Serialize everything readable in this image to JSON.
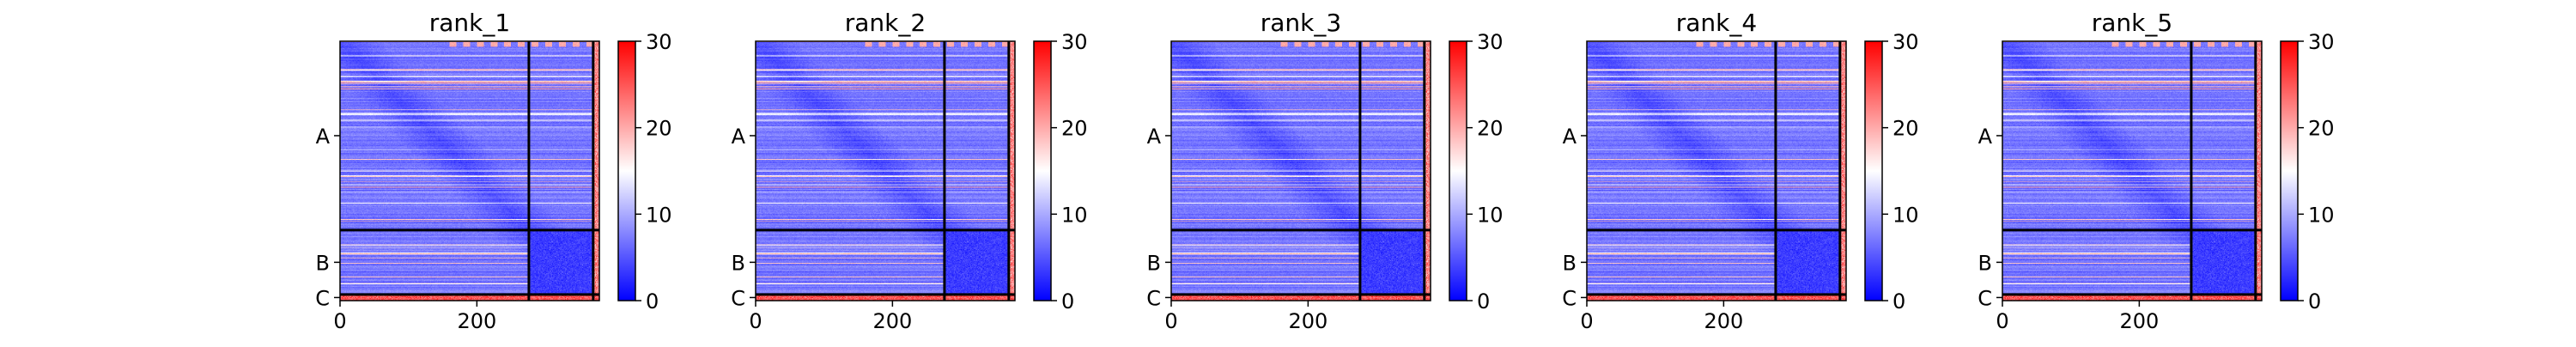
{
  "chart_data": [
    {
      "type": "heatmap",
      "title": "rank_1",
      "x_ticks": [
        0,
        200
      ],
      "y_tick_labels": [
        "A",
        "B",
        "C"
      ],
      "colorbar": {
        "range": [
          0,
          30
        ],
        "ticks": [
          0,
          10,
          20,
          30
        ],
        "colors": [
          "#0000ff",
          "#ffffff",
          "#ff0000"
        ]
      },
      "segment_boundaries": [
        276,
        370
      ],
      "total_length": 379
    },
    {
      "type": "heatmap",
      "title": "rank_2",
      "x_ticks": [
        0,
        200
      ],
      "y_tick_labels": [
        "A",
        "B",
        "C"
      ],
      "colorbar": {
        "range": [
          0,
          30
        ],
        "ticks": [
          0,
          10,
          20,
          30
        ],
        "colors": [
          "#0000ff",
          "#ffffff",
          "#ff0000"
        ]
      },
      "segment_boundaries": [
        276,
        370
      ],
      "total_length": 379
    },
    {
      "type": "heatmap",
      "title": "rank_3",
      "x_ticks": [
        0,
        200
      ],
      "y_tick_labels": [
        "A",
        "B",
        "C"
      ],
      "colorbar": {
        "range": [
          0,
          30
        ],
        "ticks": [
          0,
          10,
          20,
          30
        ],
        "colors": [
          "#0000ff",
          "#ffffff",
          "#ff0000"
        ]
      },
      "segment_boundaries": [
        276,
        370
      ],
      "total_length": 379
    },
    {
      "type": "heatmap",
      "title": "rank_4",
      "x_ticks": [
        0,
        200
      ],
      "y_tick_labels": [
        "A",
        "B",
        "C"
      ],
      "colorbar": {
        "range": [
          0,
          30
        ],
        "ticks": [
          0,
          10,
          20,
          30
        ],
        "colors": [
          "#0000ff",
          "#ffffff",
          "#ff0000"
        ]
      },
      "segment_boundaries": [
        276,
        370
      ],
      "total_length": 379
    },
    {
      "type": "heatmap",
      "title": "rank_5",
      "x_ticks": [
        0,
        200
      ],
      "y_tick_labels": [
        "A",
        "B",
        "C"
      ],
      "colorbar": {
        "range": [
          0,
          30
        ],
        "ticks": [
          0,
          10,
          20,
          30
        ],
        "colors": [
          "#0000ff",
          "#ffffff",
          "#ff0000"
        ]
      },
      "segment_boundaries": [
        276,
        370
      ],
      "total_length": 379
    }
  ]
}
